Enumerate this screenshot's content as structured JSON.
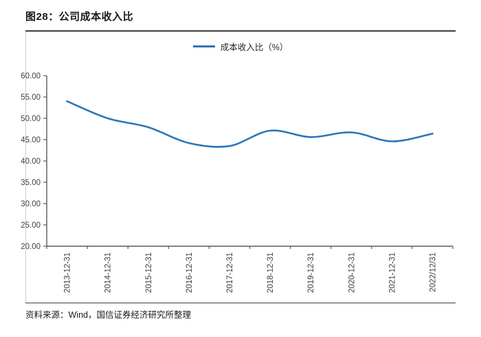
{
  "figure": {
    "title": "图28：公司成本收入比",
    "source": "资料来源：Wind，国信证券经济研究所整理"
  },
  "chart_data": {
    "type": "line",
    "title": "图28：公司成本收入比",
    "categories": [
      "2013-12-31",
      "2014-12-31",
      "2015-12-31",
      "2016-12-31",
      "2017-12-31",
      "2018-12-31",
      "2019-12-31",
      "2020-12-31",
      "2021-12-31",
      "2022/12/31"
    ],
    "series": [
      {
        "name": "成本收入比（%）",
        "values": [
          54.0,
          50.0,
          47.9,
          44.2,
          43.5,
          47.1,
          45.6,
          46.7,
          44.6,
          46.4
        ]
      }
    ],
    "ylim": [
      20,
      60
    ],
    "ytick_step": 5,
    "ytick_decimals": 2,
    "grid": false,
    "legend_position": "top-center",
    "colors": {
      "line": "#2e75b6",
      "axis": "#595959",
      "tick_label": "#404040"
    }
  }
}
